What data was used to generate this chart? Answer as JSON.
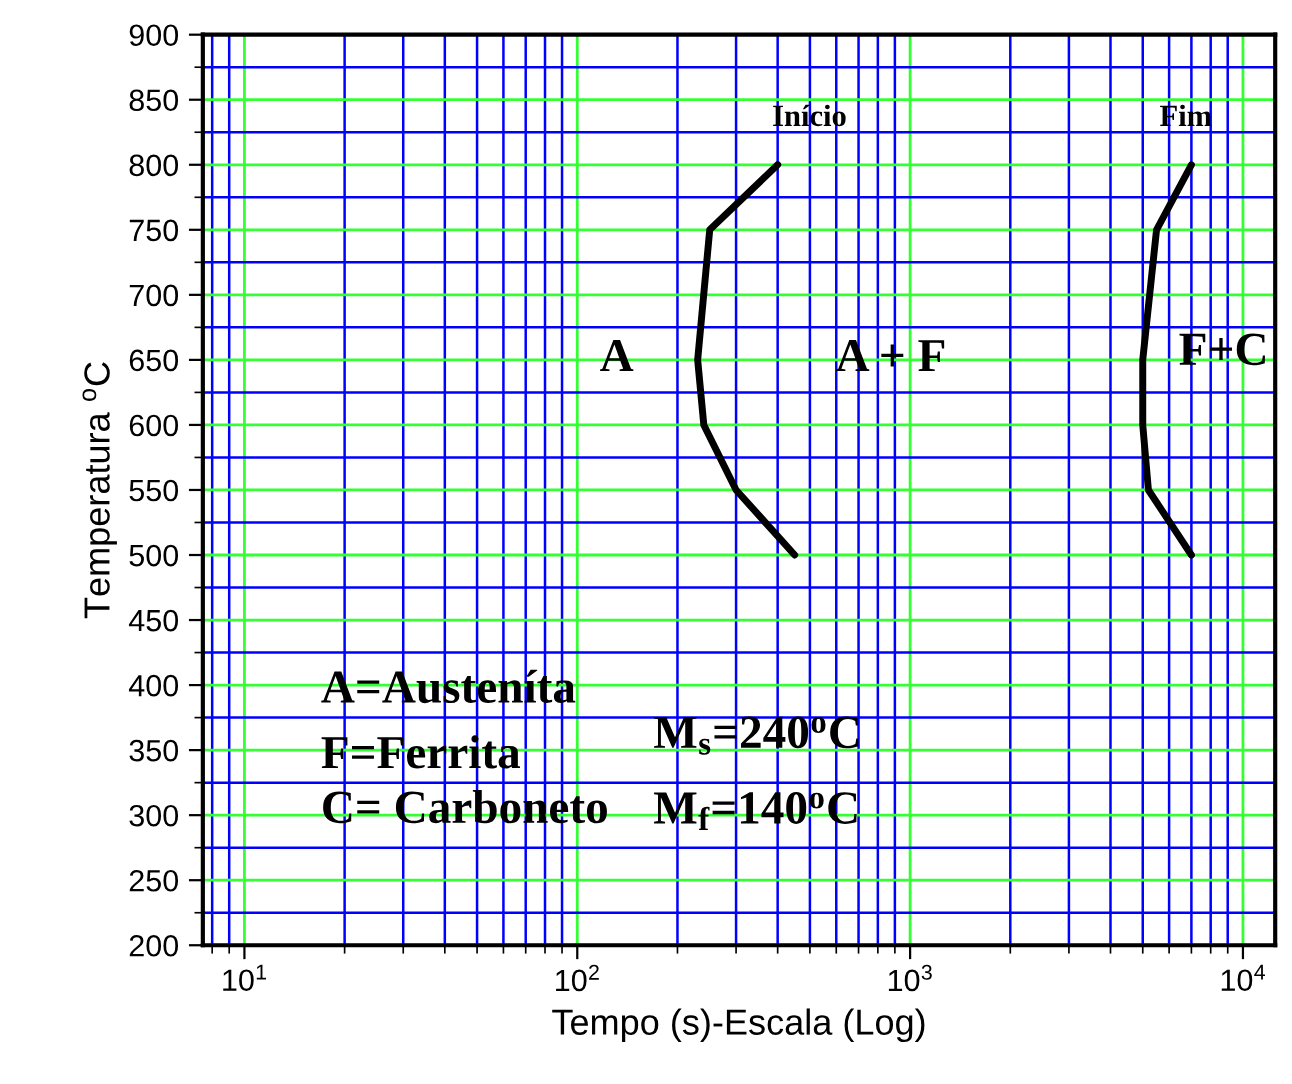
{
  "chart_data": {
    "type": "line",
    "xlabel": "Tempo (s)-Escala (Log)",
    "ylabel": "Temperatura $^{o}$C",
    "log": "x",
    "xlim": [
      7.5,
      12500
    ],
    "ylim": [
      200,
      900
    ],
    "xticks": [
      {
        "value": 8,
        "label": null
      },
      {
        "value": 9,
        "label": null
      },
      {
        "value": 10,
        "label": "10$^{1}$"
      },
      {
        "value": 20,
        "label": null
      },
      {
        "value": 30,
        "label": null
      },
      {
        "value": 40,
        "label": null
      },
      {
        "value": 50,
        "label": null
      },
      {
        "value": 60,
        "label": null
      },
      {
        "value": 70,
        "label": null
      },
      {
        "value": 80,
        "label": null
      },
      {
        "value": 90,
        "label": null
      },
      {
        "value": 100,
        "label": "10$^{2}$"
      },
      {
        "value": 200,
        "label": null
      },
      {
        "value": 300,
        "label": null
      },
      {
        "value": 400,
        "label": null
      },
      {
        "value": 500,
        "label": null
      },
      {
        "value": 600,
        "label": null
      },
      {
        "value": 700,
        "label": null
      },
      {
        "value": 800,
        "label": null
      },
      {
        "value": 900,
        "label": null
      },
      {
        "value": 1000,
        "label": "10$^{3}$"
      },
      {
        "value": 2000,
        "label": null
      },
      {
        "value": 3000,
        "label": null
      },
      {
        "value": 4000,
        "label": null
      },
      {
        "value": 5000,
        "label": null
      },
      {
        "value": 6000,
        "label": null
      },
      {
        "value": 7000,
        "label": null
      },
      {
        "value": 8000,
        "label": null
      },
      {
        "value": 9000,
        "label": null
      },
      {
        "value": 10000,
        "label": "10$^{4}$"
      }
    ],
    "yticks": [
      200,
      {
        "value": 225,
        "label": null
      },
      250,
      {
        "value": 275,
        "label": null
      },
      300,
      {
        "value": 325,
        "label": null
      },
      350,
      {
        "value": 375,
        "label": null
      },
      400,
      {
        "value": 425,
        "label": null
      },
      450,
      {
        "value": 475,
        "label": null
      },
      500,
      {
        "value": 525,
        "label": null
      },
      550,
      {
        "value": 575,
        "label": null
      },
      600,
      {
        "value": 625,
        "label": null
      },
      650,
      {
        "value": 675,
        "label": null
      },
      700,
      {
        "value": 725,
        "label": null
      },
      750,
      {
        "value": 775,
        "label": null
      },
      800,
      {
        "value": 825,
        "label": null
      },
      850,
      {
        "value": 875,
        "label": null
      },
      900
    ],
    "grid": true,
    "marker": "none",
    "line_style": "solid",
    "legend": false,
    "series": [
      {
        "name": "Início",
        "color": "#000000",
        "x": [
          400,
          250,
          230,
          240,
          300,
          450
        ],
        "values": [
          800,
          750,
          650,
          600,
          550,
          500
        ]
      },
      {
        "name": "Fim",
        "color": "#000000",
        "x": [
          7000,
          5500,
          5000,
          5000,
          5200,
          7000
        ],
        "values": [
          800,
          750,
          650,
          600,
          550,
          500
        ]
      }
    ],
    "annotations": [
      "A",
      "A + F",
      "F+C",
      "A=Austeníta",
      "F=Ferrita",
      "C= Carboneto",
      "M$_{s}$=240$^{o}$C",
      "M$_{f}$=140$^{o}$C"
    ]
  }
}
